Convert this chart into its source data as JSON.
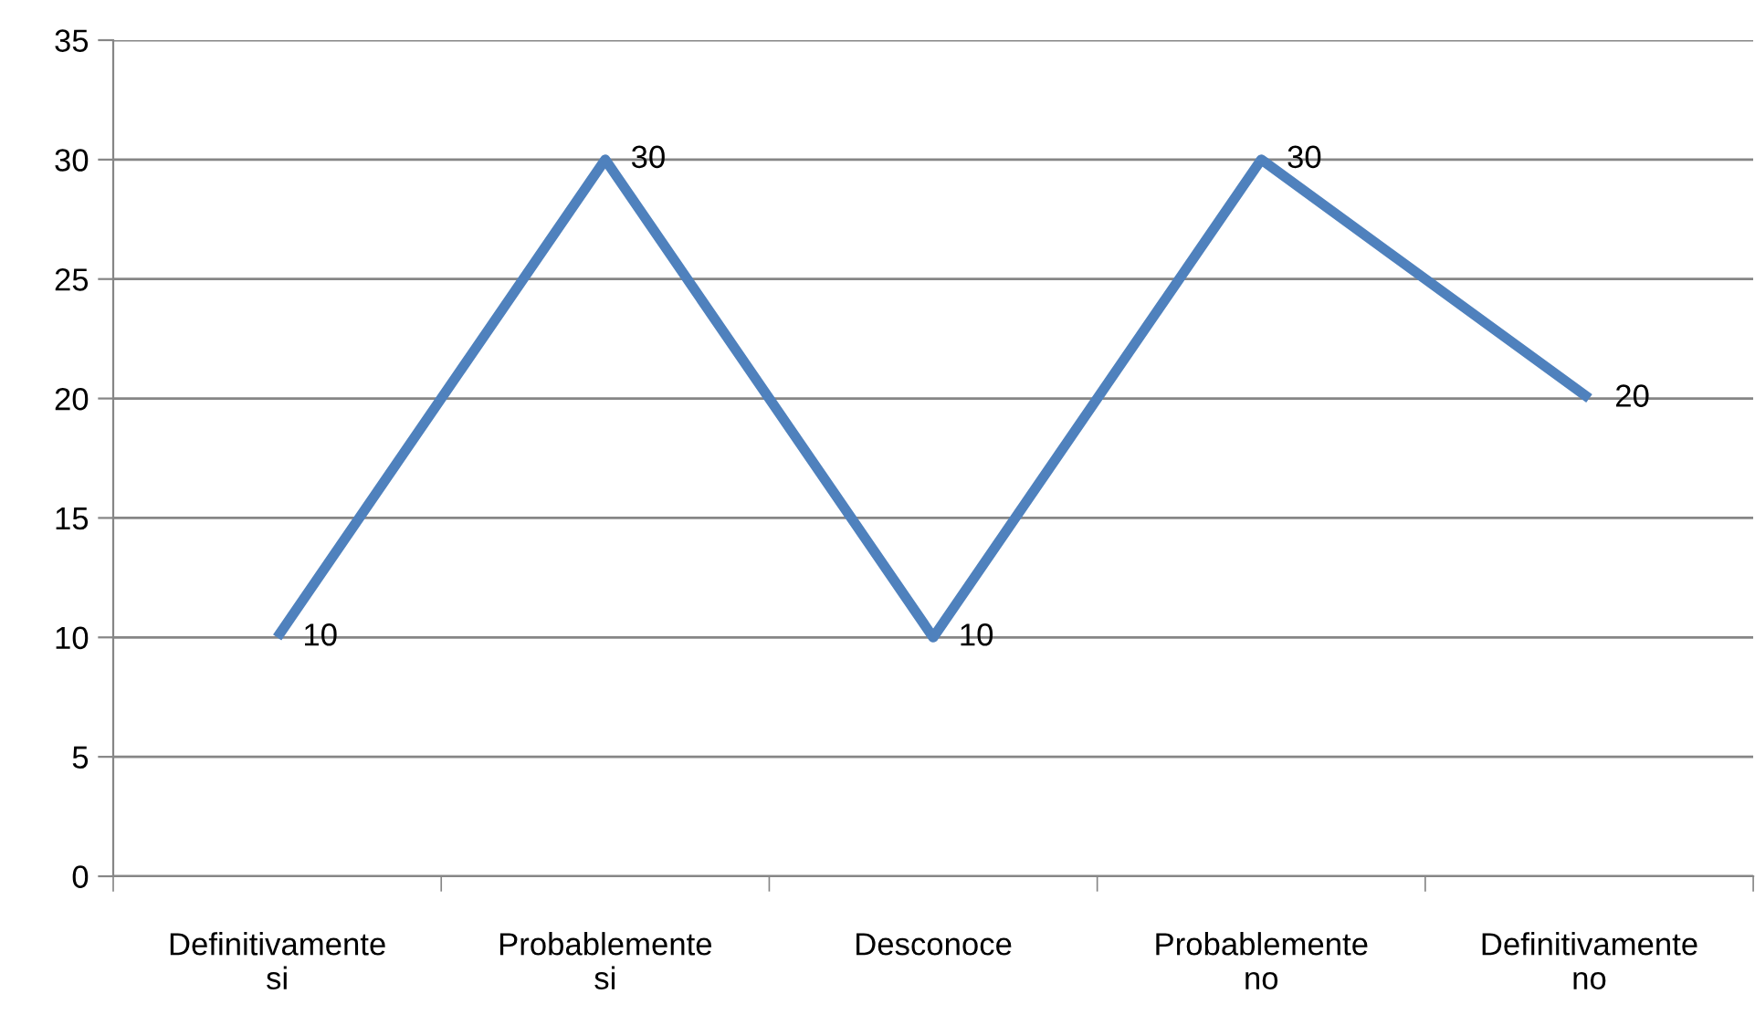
{
  "chart_data": {
    "type": "line",
    "categories": [
      "Definitivamente si",
      "Probablemente si",
      "Desconoce",
      "Probablemente no",
      "Definitivamente no"
    ],
    "series": [
      {
        "color": "#4f81bd",
        "values": [
          10,
          30,
          10,
          30,
          20
        ]
      }
    ],
    "ylim": [
      0,
      35
    ],
    "yticks": [
      0,
      5,
      10,
      15,
      20,
      25,
      30,
      35
    ],
    "grid": "y",
    "data_labels": true,
    "marker": "none",
    "line_style": "solid",
    "legend": false
  }
}
